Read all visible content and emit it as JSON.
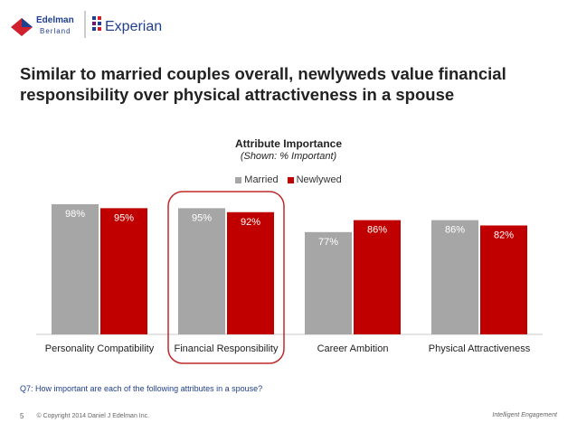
{
  "header": {
    "logo_edelman_line1": "Edelman",
    "logo_edelman_line2": "Berland",
    "logo_experian": "Experian"
  },
  "slide": {
    "title": "Similar to married couples overall, newlyweds value financial responsibility over physical attractiveness in a spouse",
    "question": "Q7: How important are each of the following attributes in a spouse?",
    "page_number": "5",
    "copyright": "© Copyright 2014 Daniel J Edelman Inc.",
    "tagline": "Intelligent Engagement"
  },
  "colors": {
    "married": "#a6a6a6",
    "newlywed": "#c00000",
    "highlight": "#c0282a",
    "brand_red": "#d0202e",
    "brand_blue": "#1f3f8f"
  },
  "chart_data": {
    "type": "bar",
    "title": "Attribute Importance",
    "subtitle": "(Shown: % Important)",
    "categories": [
      "Personality Compatibility",
      "Financial Responsibility",
      "Career Ambition",
      "Physical Attractiveness"
    ],
    "series": [
      {
        "name": "Married",
        "values": [
          98,
          95,
          77,
          86
        ],
        "labels": [
          "98%",
          "95%",
          "77%",
          "86%"
        ]
      },
      {
        "name": "Newlywed",
        "values": [
          95,
          92,
          86,
          82
        ],
        "labels": [
          "95%",
          "92%",
          "86%",
          "82%"
        ]
      }
    ],
    "ylim": [
      0,
      100
    ],
    "grid": false,
    "legend_position": "top-center",
    "highlighted_category": "Financial Responsibility"
  }
}
